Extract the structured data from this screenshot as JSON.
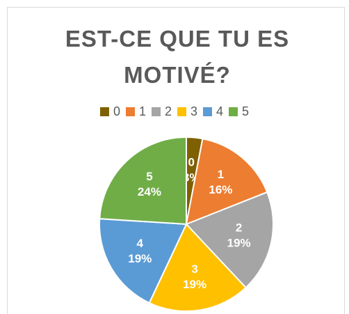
{
  "chart_data": {
    "type": "pie",
    "title": "EST-CE QUE TU ES MOTIVÉ?",
    "categories": [
      "0",
      "1",
      "2",
      "3",
      "4",
      "5"
    ],
    "values": [
      3,
      16,
      19,
      19,
      19,
      24
    ],
    "value_labels": [
      "3%",
      "16%",
      "19%",
      "19%",
      "19%",
      "24%"
    ],
    "colors": [
      "#7f6000",
      "#ed7d31",
      "#a5a5a5",
      "#ffc000",
      "#5b9bd5",
      "#70ad47"
    ],
    "legend": "top"
  }
}
